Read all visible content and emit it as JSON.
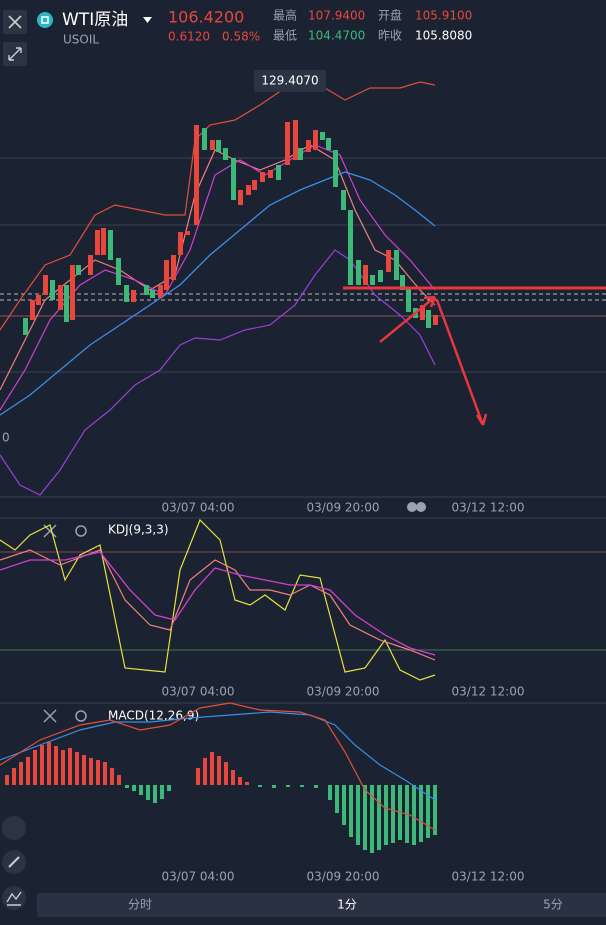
{
  "header": {
    "name": "WTI原油",
    "symbol": "USOIL",
    "price": "106.4200",
    "change": "0.6120",
    "change_pct": "0.58%",
    "stats": [
      {
        "label": "最高",
        "value": "107.9400"
      },
      {
        "label": "开盘",
        "value": "105.9100"
      },
      {
        "label": "最低",
        "value": "104.4700"
      },
      {
        "label": "昨收",
        "value": "105.8080"
      }
    ]
  },
  "main_chart": {
    "max_label": "129.4070",
    "left_label": "0",
    "time_labels": [
      "03/07 04:00",
      "03/09 20:00",
      "03/12 12:00"
    ]
  },
  "kdj": {
    "label": "KDJ(9,3,3)",
    "time_labels": [
      "03/07 04:00",
      "03/09 20:00",
      "03/12 12:00"
    ]
  },
  "macd": {
    "label": "MACD(12,26,9)",
    "time_labels": [
      "03/07 04:00",
      "03/09 20:00",
      "03/12 12:00"
    ]
  },
  "tabs": [
    "分时",
    "1分",
    "5分"
  ]
}
